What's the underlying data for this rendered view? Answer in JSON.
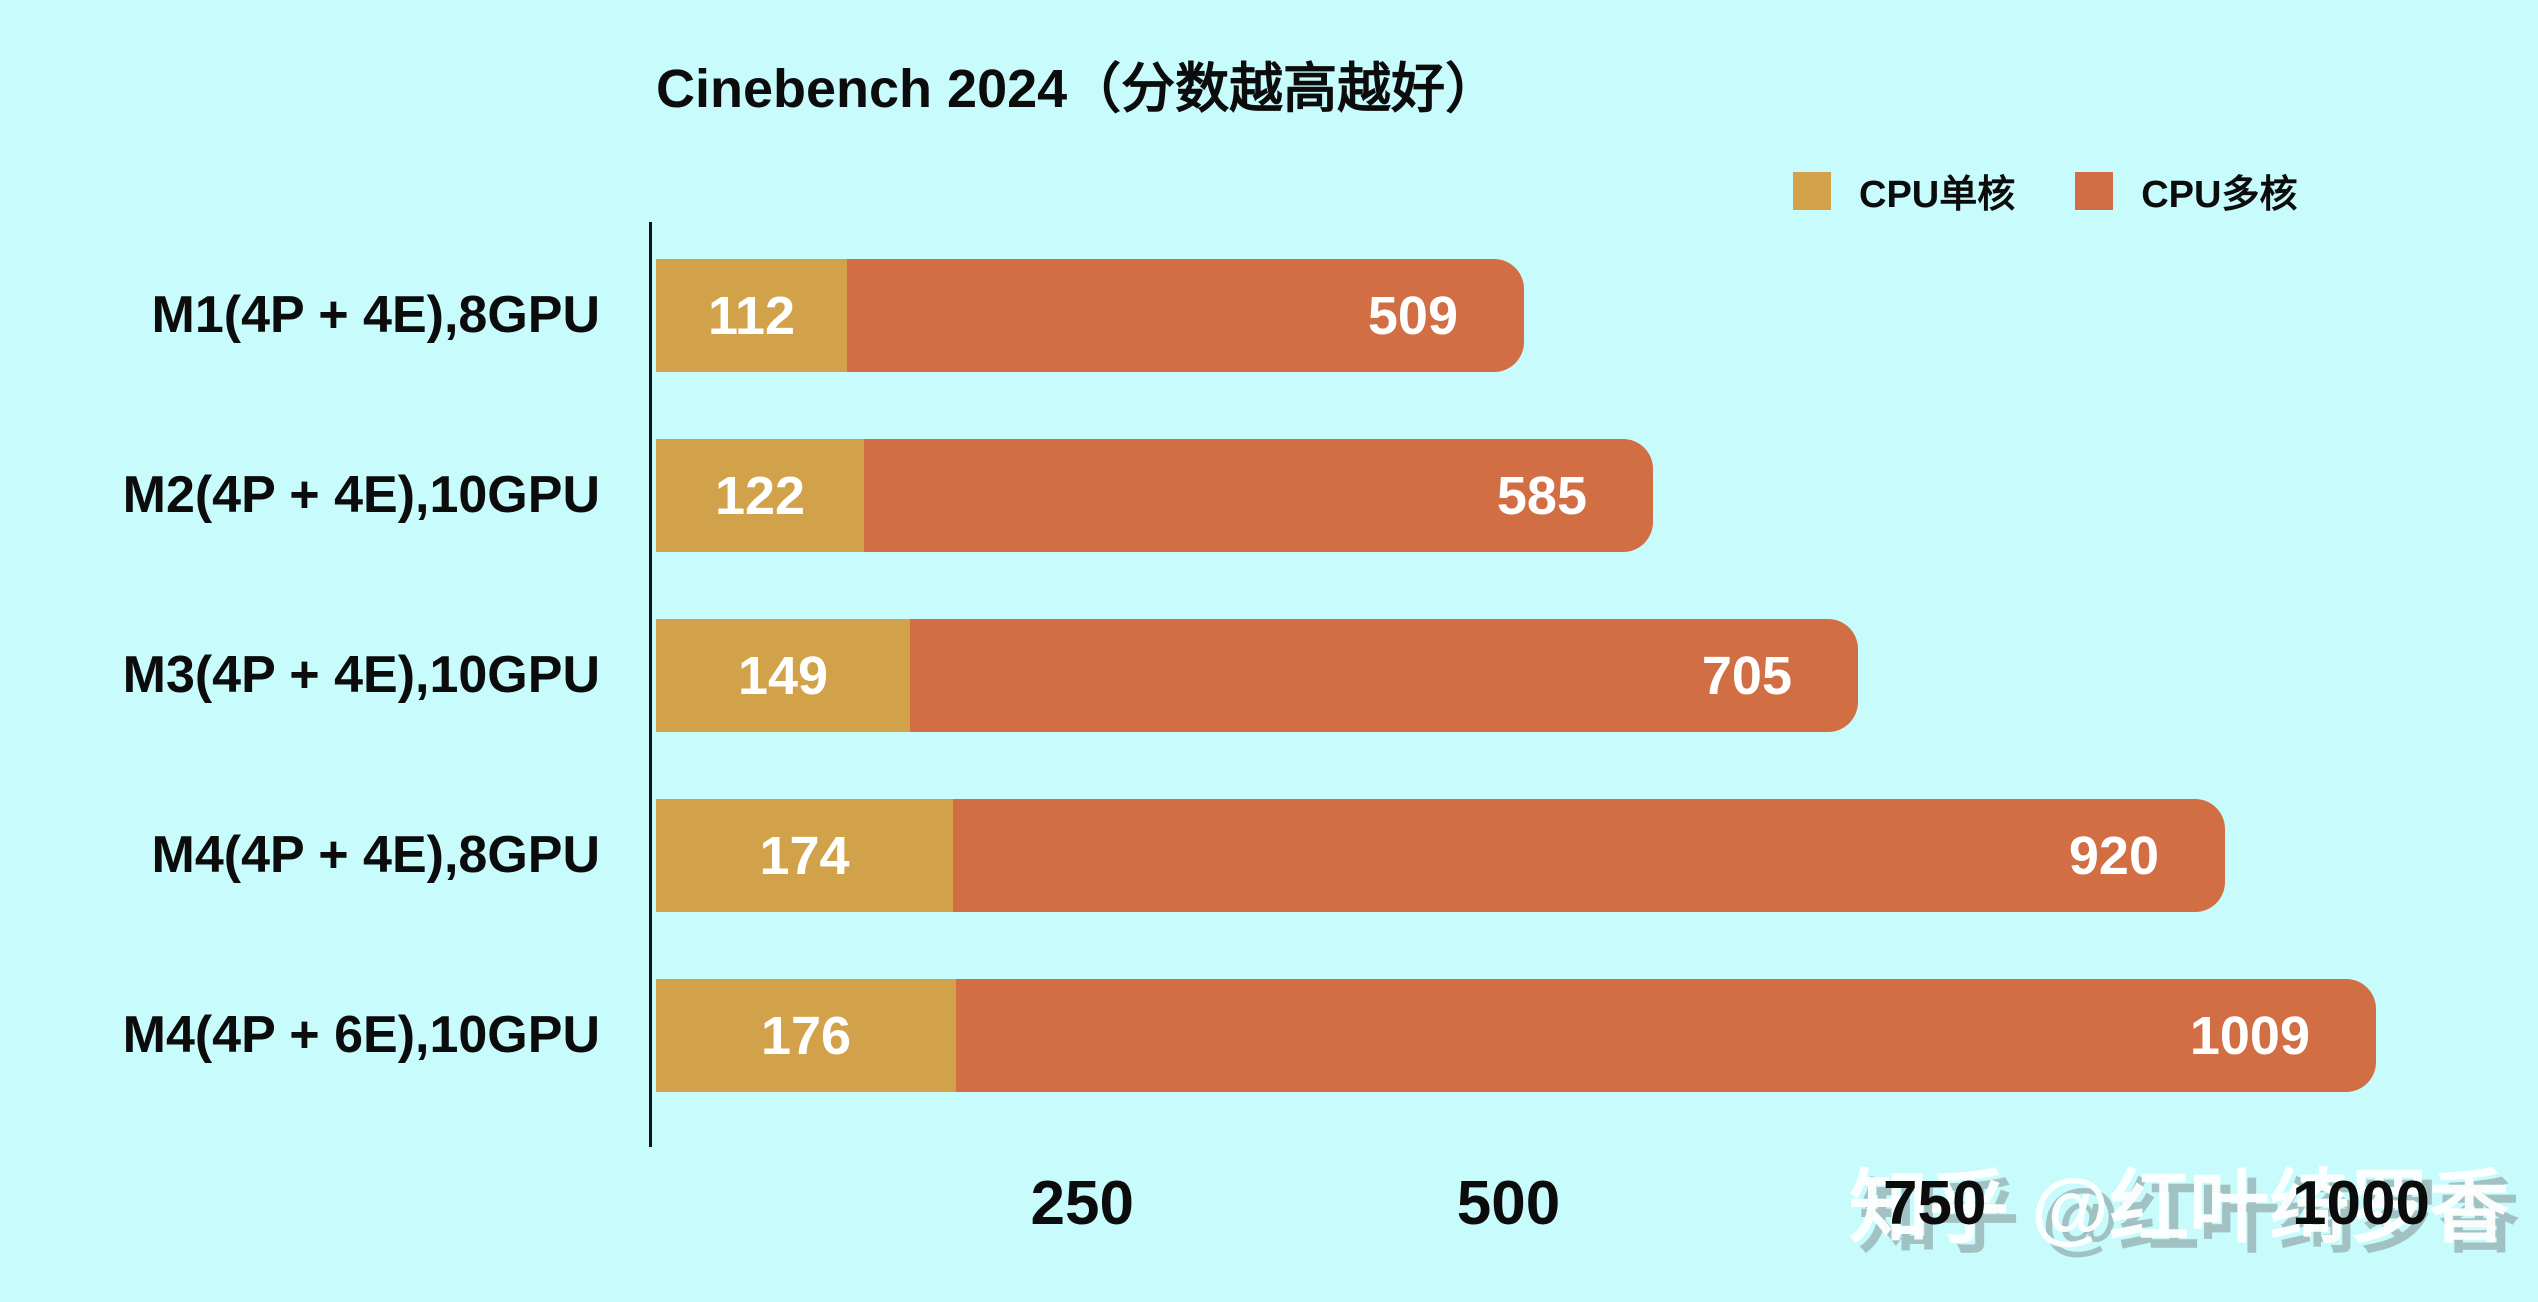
{
  "chart_data": {
    "type": "bar",
    "orientation": "horizontal",
    "title": "Cinebench 2024（分数越高越好）",
    "categories": [
      "M1(4P + 4E),8GPU",
      "M2(4P + 4E),10GPU",
      "M3(4P + 4E),10GPU",
      "M4(4P + 4E),8GPU",
      "M4(4P + 6E),10GPU"
    ],
    "series": [
      {
        "name": "CPU单核",
        "color": "#d2a24a",
        "values": [
          112,
          122,
          149,
          174,
          176
        ]
      },
      {
        "name": "CPU多核",
        "color": "#d16e44",
        "values": [
          509,
          585,
          705,
          920,
          1009
        ]
      }
    ],
    "x_ticks": [
      250,
      500,
      750,
      1000
    ],
    "xlim": [
      0,
      1104
    ],
    "bar_style": "bars share zero baseline; 单核 bar drawn over 多核 bar",
    "value_labels": "white bold numbers inside bars (单核 centered, 多核 right-aligned)",
    "legend_position": "top-right",
    "grid": false
  },
  "colors": {
    "background": "#c7fbfc",
    "axis": "#111111",
    "text": "#0c0c0c",
    "value_label": "#ffffff",
    "single_core": "#d2a24a",
    "multi_core": "#d16e44"
  },
  "watermark": {
    "text": "知乎 @红叶绮罗香"
  }
}
